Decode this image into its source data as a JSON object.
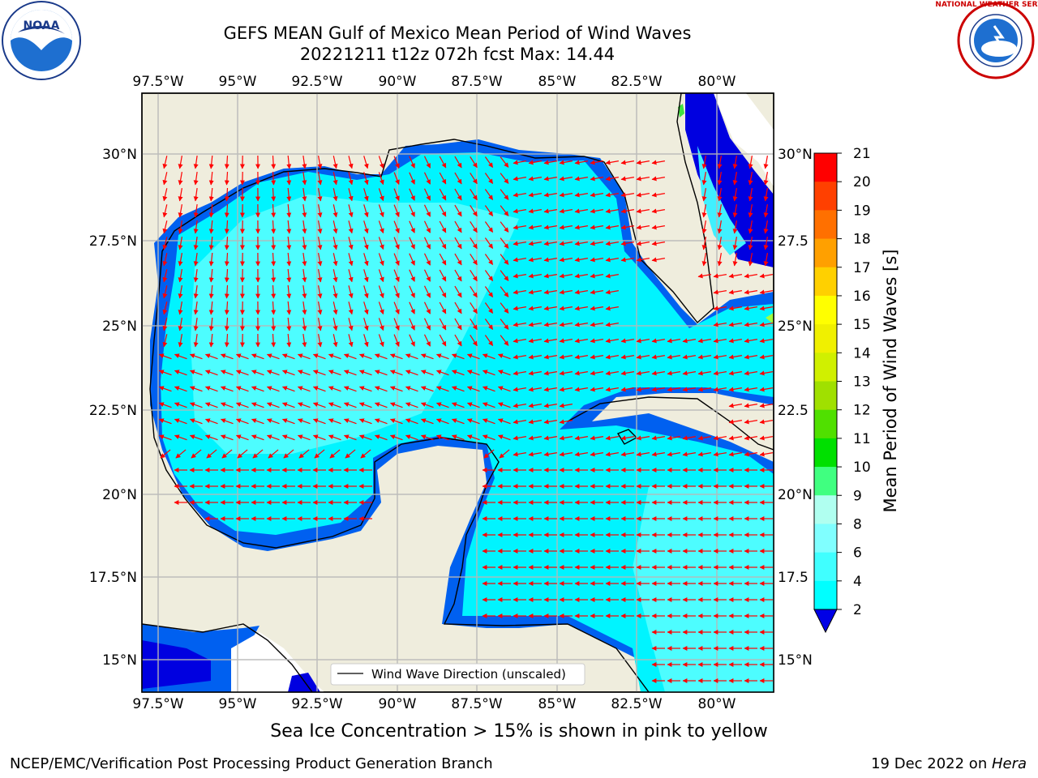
{
  "title_line1": "GEFS MEAN Gulf of Mexico Mean Period of Wind Waves",
  "title_line2": "20221211 t12z 072h fcst   Max: 14.44",
  "legend_label": "Wind Wave Direction (unscaled)",
  "colorbar": {
    "label": "Mean Period of Wind Waves [s]",
    "ticks": [
      "2",
      "4",
      "6",
      "8",
      "9",
      "10",
      "11",
      "12",
      "13",
      "14",
      "15",
      "16",
      "17",
      "18",
      "19",
      "20",
      "21"
    ],
    "colors": [
      "#0000e6",
      "#0080ff",
      "#00ffff",
      "#40ffff",
      "#80ffff",
      "#b0fff0",
      "#40ff80",
      "#00e000",
      "#50e000",
      "#a0e000",
      "#d0f000",
      "#f0f000",
      "#ffff00",
      "#ffd000",
      "#ffa000",
      "#ff7000",
      "#ff4000",
      "#ff0000"
    ]
  },
  "map": {
    "top_lon_labels": [
      "97.5°W",
      "95°W",
      "92.5°W",
      "90°W",
      "87.5°W",
      "85°W",
      "82.5°W",
      "80°W"
    ],
    "bottom_lon_labels": [
      "97.5°W",
      "95°W",
      "92.5°W",
      "90°W",
      "87.5°W",
      "85°W",
      "82.5°W",
      "80°W"
    ],
    "left_lat_labels": [
      "30°N",
      "27.5°N",
      "25°N",
      "22.5°N",
      "20°N",
      "17.5°N",
      "15°N"
    ],
    "right_lat_labels": [
      "30°N",
      "27.5",
      "25°N",
      "22.5",
      "20°N",
      "17.5",
      "15°N"
    ],
    "lon_range": [
      -98,
      -78.3
    ],
    "lat_range": [
      14,
      31.6
    ]
  },
  "ice_note": "Sea Ice Concentration > 15% is shown in pink to yellow",
  "credit_left": "NCEP/EMC/Verification Post Processing Product Generation Branch",
  "credit_right_date": "19 Dec 2022 on ",
  "credit_right_host": "Hera",
  "logos": {
    "noaa": "NOAA",
    "nws": "NATIONAL WEATHER SERVICE"
  }
}
